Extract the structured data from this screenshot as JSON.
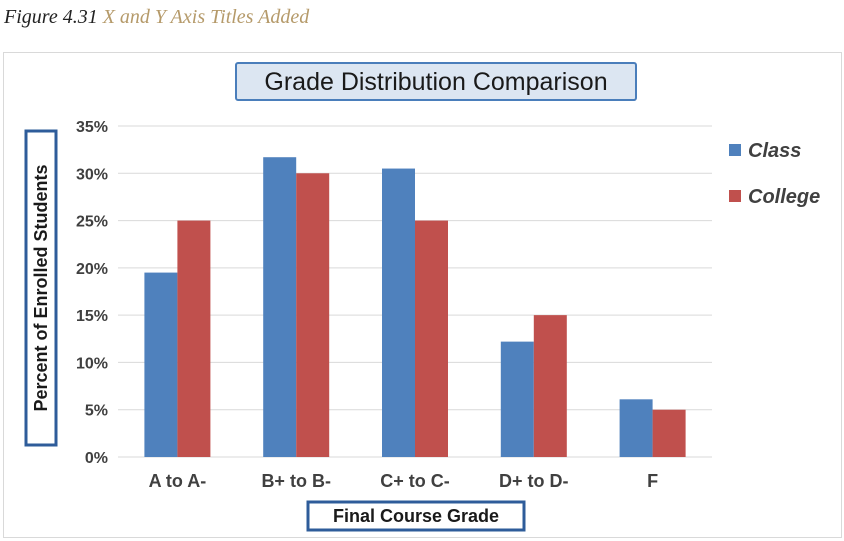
{
  "caption": {
    "label": "Figure 4.31",
    "title": "X and Y Axis Titles Added"
  },
  "colors": {
    "class": "#4f81bd",
    "college": "#c0504d",
    "grid": "#d9d9d9",
    "title_box_fill": "#dce6f2",
    "title_box_border": "#4a7ebb",
    "axis_title_border": "#2e5c9a"
  },
  "chart_data": {
    "type": "bar",
    "title": "Grade Distribution Comparison",
    "xlabel": "Final Course Grade",
    "ylabel": "Percent of Enrolled Students",
    "categories": [
      "A to A-",
      "B+ to B-",
      "C+ to C-",
      "D+ to D-",
      "F"
    ],
    "series": [
      {
        "name": "Class",
        "values": [
          19.5,
          31.7,
          30.5,
          12.2,
          6.1
        ]
      },
      {
        "name": "College",
        "values": [
          25,
          30,
          25,
          15,
          5
        ]
      }
    ],
    "ylim": [
      0,
      35
    ],
    "yticks": [
      0,
      5,
      10,
      15,
      20,
      25,
      30,
      35
    ],
    "ytick_labels": [
      "0%",
      "5%",
      "10%",
      "15%",
      "20%",
      "25%",
      "30%",
      "35%"
    ],
    "grid": true,
    "legend": "right"
  }
}
